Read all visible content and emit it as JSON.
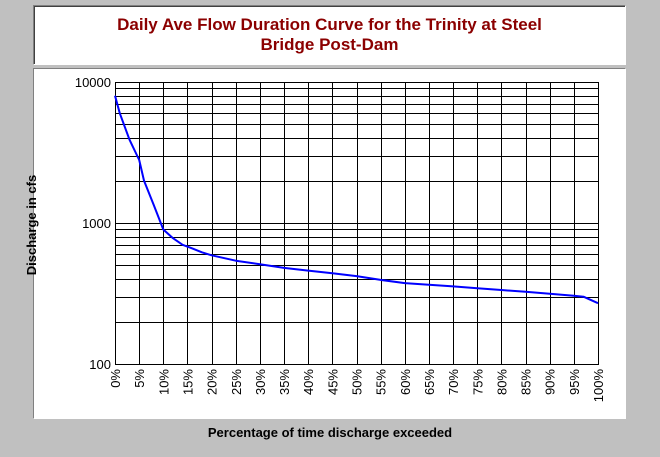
{
  "title_lines": [
    "Daily Ave Flow Duration Curve for the Trinity at Steel",
    "Bridge Post-Dam"
  ],
  "chart_data": {
    "type": "line",
    "title": "Daily Ave Flow Duration Curve for the Trinity at Steel Bridge Post-Dam",
    "xlabel": "Percentage of time discharge exceeded",
    "ylabel": "Discharge in cfs",
    "y_scale": "log",
    "ylim": [
      100,
      10000
    ],
    "xlim": [
      0,
      100
    ],
    "grid": true,
    "x_ticks": [
      "0%",
      "5%",
      "10%",
      "15%",
      "20%",
      "25%",
      "30%",
      "35%",
      "40%",
      "45%",
      "50%",
      "55%",
      "60%",
      "65%",
      "70%",
      "75%",
      "80%",
      "85%",
      "90%",
      "95%",
      "100%"
    ],
    "y_ticks": [
      "100",
      "1000",
      "10000"
    ],
    "series": [
      {
        "color": "#0000ff",
        "x": [
          0,
          1,
          3,
          5,
          6,
          8,
          10,
          12,
          14,
          16,
          18,
          20,
          25,
          30,
          35,
          40,
          45,
          50,
          55,
          60,
          65,
          70,
          75,
          80,
          85,
          90,
          95,
          97,
          100
        ],
        "y": [
          8000,
          6000,
          3900,
          2800,
          2000,
          1350,
          900,
          780,
          700,
          660,
          620,
          590,
          540,
          510,
          480,
          460,
          440,
          420,
          395,
          375,
          365,
          355,
          345,
          335,
          325,
          315,
          305,
          300,
          270
        ]
      }
    ]
  }
}
